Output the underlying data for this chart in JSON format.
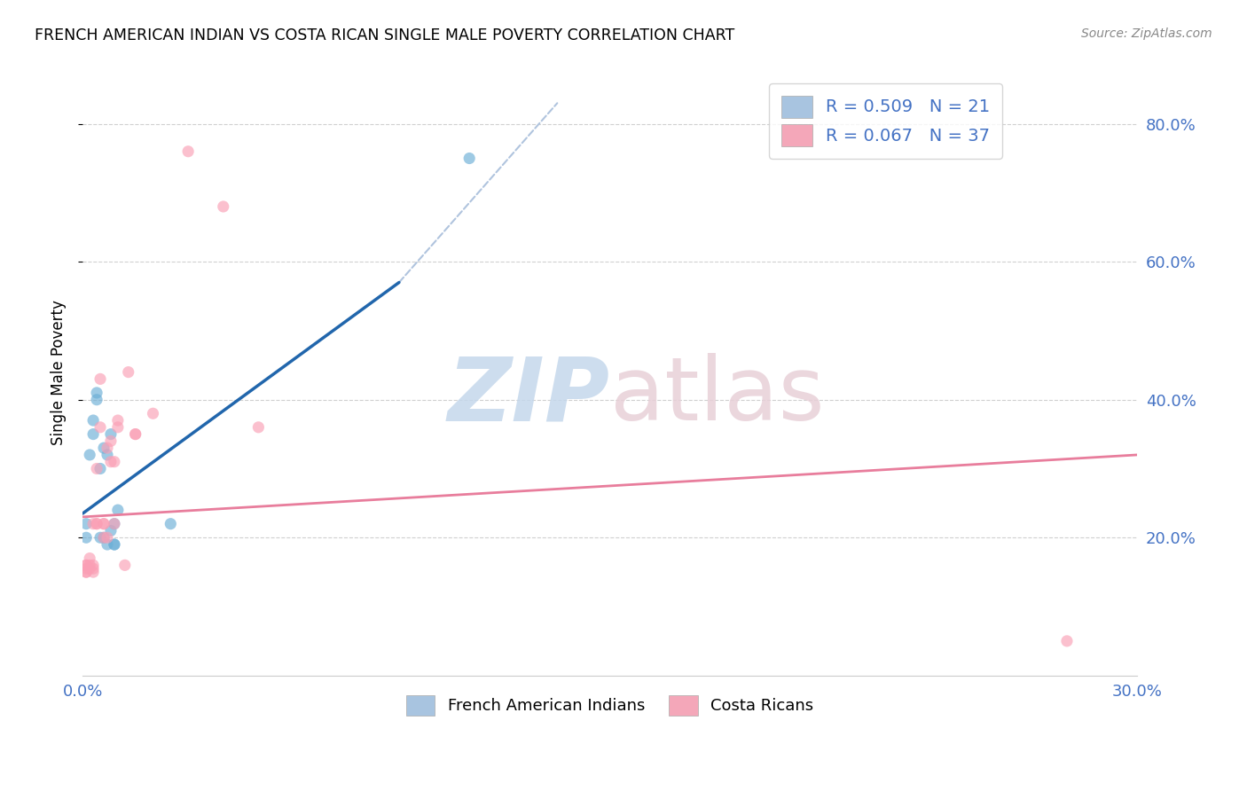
{
  "title": "FRENCH AMERICAN INDIAN VS COSTA RICAN SINGLE MALE POVERTY CORRELATION CHART",
  "source": "Source: ZipAtlas.com",
  "ylabel": "Single Male Poverty",
  "legend1_label": "R = 0.509   N = 21",
  "legend2_label": "R = 0.067   N = 37",
  "legend_color1": "#a8c4e0",
  "legend_color2": "#f4a7b9",
  "blue_scatter_x": [
    0.001,
    0.001,
    0.002,
    0.003,
    0.003,
    0.004,
    0.004,
    0.005,
    0.005,
    0.006,
    0.006,
    0.007,
    0.007,
    0.008,
    0.008,
    0.009,
    0.009,
    0.009,
    0.01,
    0.025,
    0.11
  ],
  "blue_scatter_y": [
    0.2,
    0.22,
    0.32,
    0.35,
    0.37,
    0.4,
    0.41,
    0.2,
    0.3,
    0.2,
    0.33,
    0.19,
    0.32,
    0.21,
    0.35,
    0.19,
    0.19,
    0.22,
    0.24,
    0.22,
    0.75
  ],
  "pink_scatter_x": [
    0.001,
    0.001,
    0.001,
    0.001,
    0.001,
    0.002,
    0.002,
    0.002,
    0.003,
    0.003,
    0.003,
    0.003,
    0.004,
    0.004,
    0.004,
    0.005,
    0.005,
    0.006,
    0.006,
    0.006,
    0.007,
    0.007,
    0.008,
    0.008,
    0.009,
    0.009,
    0.01,
    0.01,
    0.012,
    0.013,
    0.015,
    0.015,
    0.02,
    0.03,
    0.04,
    0.05,
    0.28
  ],
  "pink_scatter_y": [
    0.15,
    0.15,
    0.155,
    0.16,
    0.16,
    0.155,
    0.16,
    0.17,
    0.15,
    0.155,
    0.16,
    0.22,
    0.22,
    0.22,
    0.3,
    0.36,
    0.43,
    0.22,
    0.22,
    0.2,
    0.2,
    0.33,
    0.34,
    0.31,
    0.31,
    0.22,
    0.36,
    0.37,
    0.16,
    0.44,
    0.35,
    0.35,
    0.38,
    0.76,
    0.68,
    0.36,
    0.05
  ],
  "blue_line_x": [
    0.0,
    0.09
  ],
  "blue_line_y": [
    0.235,
    0.57
  ],
  "pink_line_x": [
    0.0,
    0.3
  ],
  "pink_line_y": [
    0.23,
    0.32
  ],
  "diag_line_x": [
    0.09,
    0.135
  ],
  "diag_line_y": [
    0.57,
    0.83
  ],
  "xmin": 0.0,
  "xmax": 0.3,
  "ymin": 0.0,
  "ymax": 0.88,
  "marker_size": 90,
  "blue_color": "#6baed6",
  "pink_color": "#fa9fb5",
  "blue_line_color": "#2166ac",
  "pink_line_color": "#e87d9c",
  "grid_color": "#d0d0d0",
  "tick_color": "#4472c4"
}
